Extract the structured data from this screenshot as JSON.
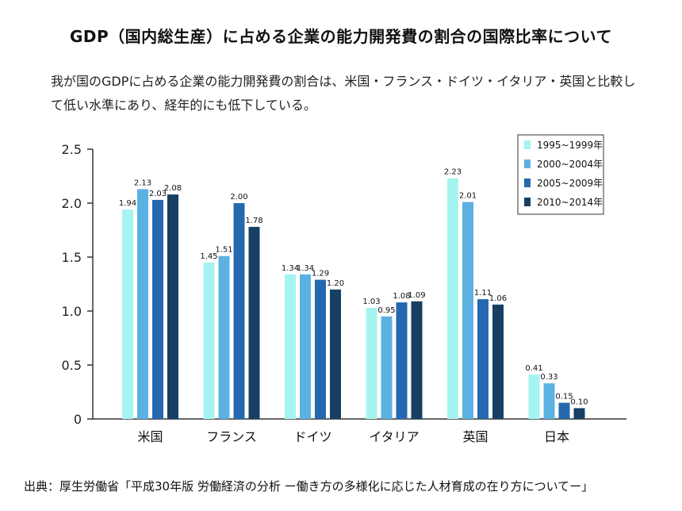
{
  "title": "GDP（国内総生産）に占める企業の能力開発費の割合の国際比率について",
  "subtitle": "我が国のGDPに占める企業の能力開発費の割合は、米国・フランス・ドイツ・イタリア・英国と比較して低い水準にあり、経年的にも低下している。",
  "source": "出典：厚生労働省「平成30年版 労働経済の分析 ー働き方の多様化に応じた人材育成の在り方についてー」",
  "chart_data": {
    "type": "bar",
    "categories": [
      "米国",
      "フランス",
      "ドイツ",
      "イタリア",
      "英国",
      "日本"
    ],
    "ylim": [
      0,
      2.5
    ],
    "yticks": [
      "0",
      "0.5",
      "1.0",
      "1.5",
      "2.0",
      "2.5"
    ],
    "legend_position": "top-right",
    "grid": false,
    "series": [
      {
        "name": "1995~1999年",
        "color": "#a6f4f1",
        "values": [
          1.94,
          1.45,
          1.34,
          1.03,
          2.23,
          0.41
        ],
        "labels": [
          "1.94",
          "1.45",
          "1.34",
          "1.03",
          "2.23",
          "0.41"
        ]
      },
      {
        "name": "2000~2004年",
        "color": "#5cb1e3",
        "values": [
          2.13,
          1.51,
          1.34,
          0.95,
          2.01,
          0.33
        ],
        "labels": [
          "2.13",
          "1.51",
          "1.34",
          "0.95",
          "2.01",
          "0.33"
        ]
      },
      {
        "name": "2005~2009年",
        "color": "#2568b0",
        "values": [
          2.03,
          2.0,
          1.29,
          1.08,
          1.11,
          0.15
        ],
        "labels": [
          "2.03",
          "2.00",
          "1.29",
          "1.08",
          "1.11",
          "0.15"
        ]
      },
      {
        "name": "2010~2014年",
        "color": "#163f63",
        "values": [
          2.08,
          1.78,
          1.2,
          1.09,
          1.06,
          0.1
        ],
        "labels": [
          "2.08",
          "1.78",
          "1.20",
          "1.09",
          "1.06",
          "0.10"
        ]
      }
    ]
  }
}
